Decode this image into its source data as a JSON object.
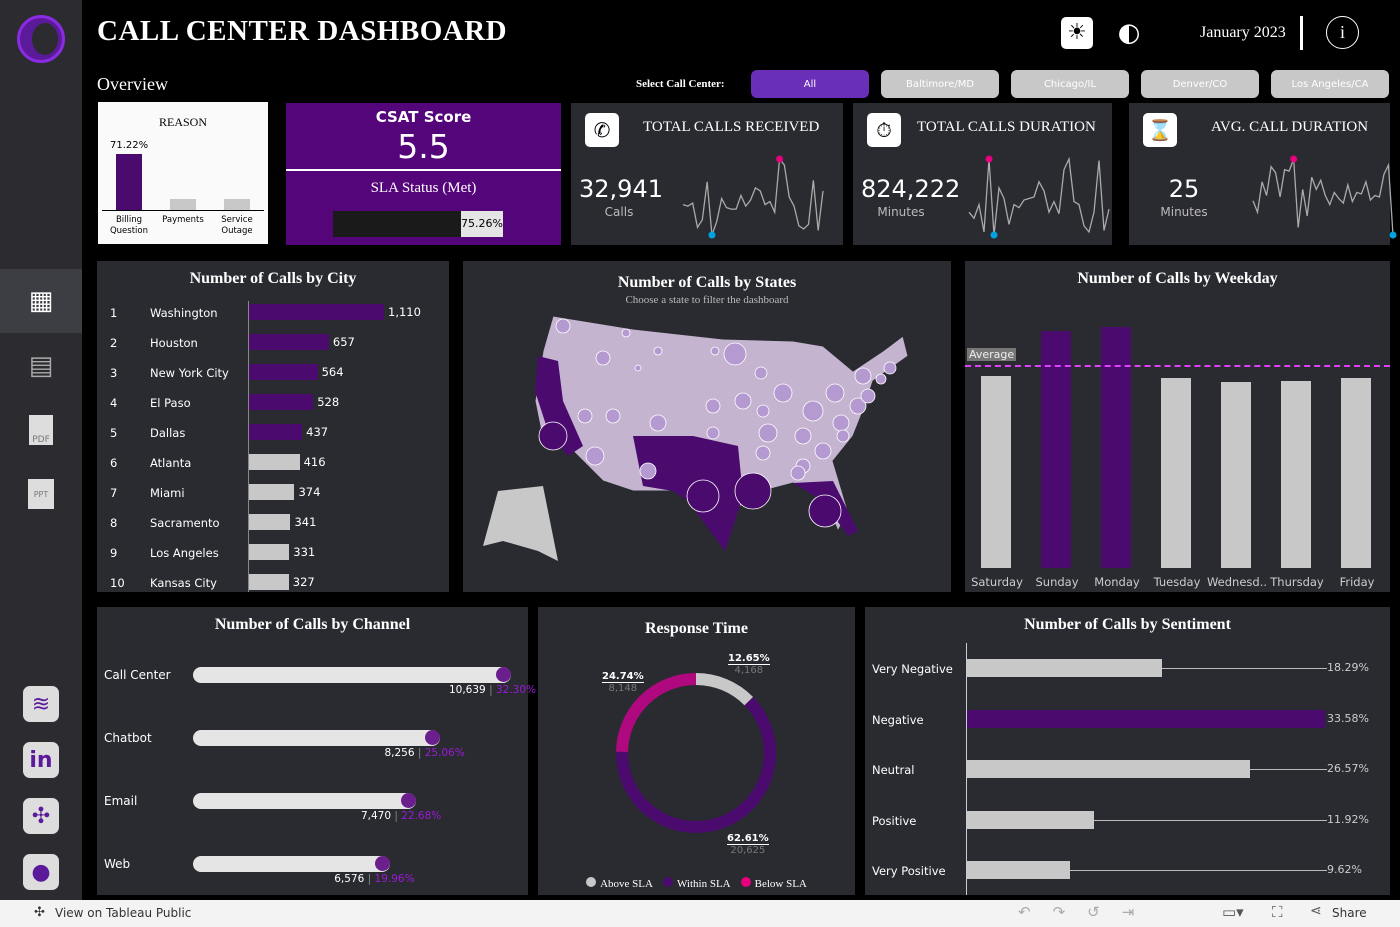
{
  "header": {
    "title": "CALL  CENTER  DASHBOARD",
    "subtitle": "Overview",
    "date": "January 2023",
    "filter_label": "Select  Call  Center:"
  },
  "filters": [
    {
      "label": "All",
      "active": true
    },
    {
      "label": "Baltimore/MD"
    },
    {
      "label": "Chicago/IL"
    },
    {
      "label": "Denver/CO"
    },
    {
      "label": "Los Angeles/CA"
    }
  ],
  "sidebar": {
    "items": [
      "dashboard-icon",
      "table-icon",
      "pdf-icon",
      "ppt-icon"
    ],
    "links": [
      "database-icon",
      "linkedin-icon",
      "tableau-icon",
      "github-icon"
    ]
  },
  "reason": {
    "title": "REASON",
    "top_label": "71.22%",
    "categories": [
      "Billing Question",
      "Payments",
      "Service Outage"
    ],
    "values": [
      71.22,
      14.5,
      14.28
    ]
  },
  "csat": {
    "title": "CSAT Score",
    "value": "5.5",
    "sla_title": "SLA Status (Met)",
    "sla_value": "75.26%",
    "sla_fraction": 0.7526
  },
  "kpis": [
    {
      "title": "TOTAL CALLS RECEIVED",
      "value": "32,941",
      "unit": "Calls",
      "icon": "phone-incoming-icon",
      "spark": [
        40,
        38,
        42,
        10,
        20,
        70,
        0,
        18,
        48,
        36,
        34,
        34,
        52,
        38,
        46,
        62,
        58,
        40,
        44,
        30,
        100,
        92,
        50,
        38,
        12,
        8,
        14,
        72,
        6,
        58
      ]
    },
    {
      "title": "TOTAL CALLS DURATION",
      "value": "824,222",
      "unit": "Minutes",
      "icon": "clock-icon",
      "spark": [
        30,
        22,
        40,
        4,
        100,
        0,
        62,
        48,
        14,
        40,
        36,
        46,
        48,
        50,
        70,
        58,
        30,
        44,
        28,
        86,
        100,
        44,
        40,
        12,
        4,
        30,
        98,
        6,
        34
      ]
    },
    {
      "title": "AVG. CALL DURATION",
      "value": "25",
      "unit": "Minutes",
      "icon": "hourglass-icon",
      "spark": [
        45,
        30,
        70,
        52,
        90,
        82,
        50,
        86,
        84,
        100,
        10,
        60,
        25,
        76,
        60,
        72,
        52,
        40,
        56,
        48,
        42,
        66,
        44,
        56,
        54,
        70,
        46,
        52,
        50,
        80,
        92,
        0
      ]
    }
  ],
  "city": {
    "title": "Number  of  Calls  by  City",
    "rows": [
      {
        "rank": "1",
        "name": "Washington",
        "value": 1110,
        "label": "1,110"
      },
      {
        "rank": "2",
        "name": "Houston",
        "value": 657,
        "label": "657"
      },
      {
        "rank": "3",
        "name": "New York City",
        "value": 564,
        "label": "564"
      },
      {
        "rank": "4",
        "name": "El Paso",
        "value": 528,
        "label": "528"
      },
      {
        "rank": "5",
        "name": "Dallas",
        "value": 437,
        "label": "437"
      },
      {
        "rank": "6",
        "name": "Atlanta",
        "value": 416,
        "label": "416"
      },
      {
        "rank": "7",
        "name": "Miami",
        "value": 374,
        "label": "374"
      },
      {
        "rank": "8",
        "name": "Sacramento",
        "value": 341,
        "label": "341"
      },
      {
        "rank": "9",
        "name": "Los Angeles",
        "value": 331,
        "label": "331"
      },
      {
        "rank": "10",
        "name": "Kansas City",
        "value": 327,
        "label": "327"
      }
    ]
  },
  "states": {
    "title": "Number  of  Calls  by  States",
    "subtitle": "Choose  a  state  to  filter  the  dashboard"
  },
  "weekday": {
    "title": "Number  of  Calls  by  Weekday",
    "average_label": "Average",
    "average": 4706,
    "categories": [
      "Saturday",
      "Sunday",
      "Monday",
      "Tuesday",
      "Wednesd..",
      "Thursday",
      "Friday"
    ],
    "values": [
      4450,
      5490,
      5590,
      4400,
      4310,
      4330,
      4400
    ],
    "highlight": [
      false,
      true,
      true,
      false,
      false,
      false,
      false
    ]
  },
  "channel": {
    "title": "Number  of  Calls  by  Channel",
    "rows": [
      {
        "name": "Call Center",
        "value": 10639,
        "label": "10,639",
        "pct": "32.30%"
      },
      {
        "name": "Chatbot",
        "value": 8256,
        "label": "8,256",
        "pct": "25.06%"
      },
      {
        "name": "Email",
        "value": 7470,
        "label": "7,470",
        "pct": "22.68%"
      },
      {
        "name": "Web",
        "value": 6576,
        "label": "6,576",
        "pct": "19.96%"
      }
    ]
  },
  "response": {
    "title": "Response  Time",
    "segments": [
      {
        "name": "Above SLA",
        "pct": "12.65%",
        "count": "4,168",
        "value": 12.65,
        "color": "#c8c8c8"
      },
      {
        "name": "Within SLA",
        "pct": "62.61%",
        "count": "20,625",
        "value": 62.61,
        "color": "#4a0a6e"
      },
      {
        "name": "Below SLA",
        "pct": "24.74%",
        "count": "8,148",
        "value": 24.74,
        "color": "#b0097f"
      }
    ]
  },
  "sentiment": {
    "title": "Number  of  Calls  by  Sentiment",
    "rows": [
      {
        "name": "Very Negative",
        "value": 18.29,
        "label": "18.29%"
      },
      {
        "name": "Negative",
        "value": 33.58,
        "label": "33.58%",
        "highlight": true
      },
      {
        "name": "Neutral",
        "value": 26.57,
        "label": "26.57%"
      },
      {
        "name": "Positive",
        "value": 11.92,
        "label": "11.92%"
      },
      {
        "name": "Very Positive",
        "value": 9.62,
        "label": "9.62%"
      }
    ]
  },
  "footer": {
    "view_label": "View on Tableau Public",
    "share_label": "Share"
  },
  "colors": {
    "purple": "#4a0a6e",
    "accent": "#6a2fb8",
    "gray": "#c8c8c8",
    "panel": "#2a2b30",
    "pink": "#e6007e",
    "cyan": "#00a3e0"
  }
}
